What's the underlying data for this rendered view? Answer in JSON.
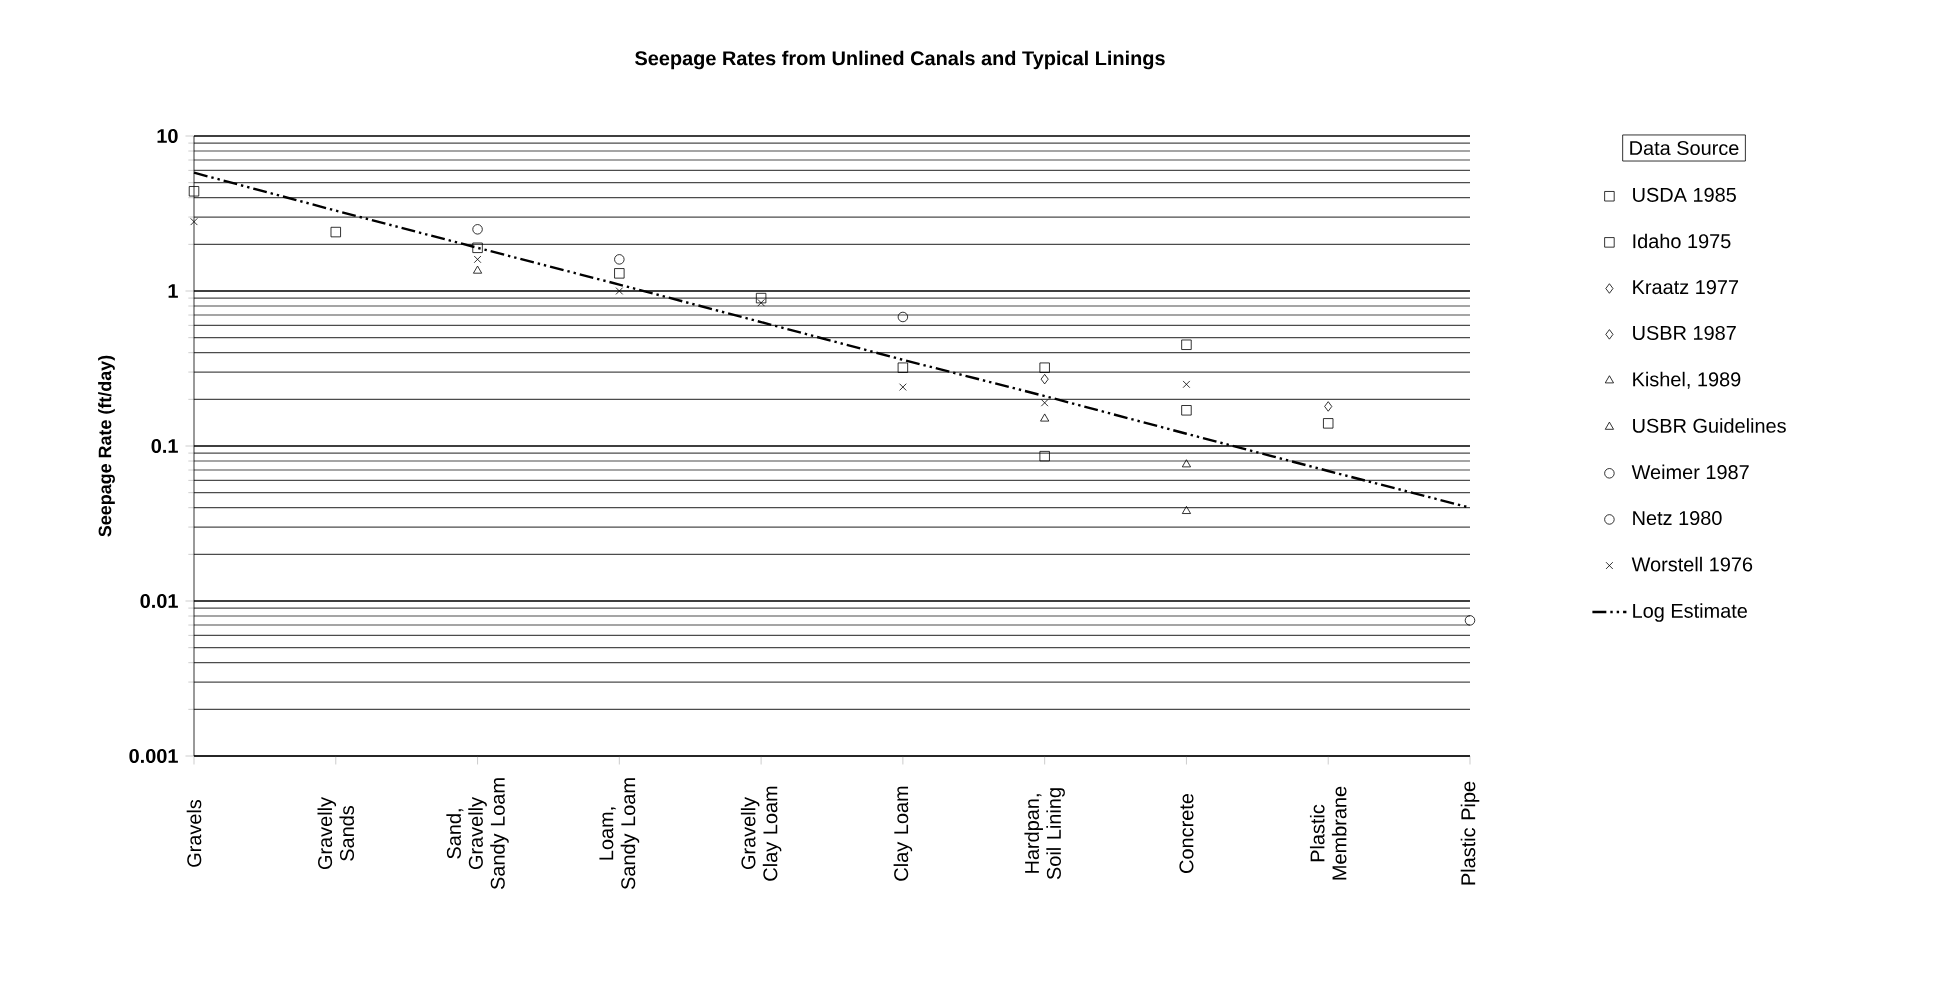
{
  "chart_data": {
    "type": "scatter",
    "title": "Seepage Rates from Unlined Canals and Typical Linings",
    "ylabel": "Seepage Rate (ft/day)",
    "legend_title": "Data Source",
    "categories": [
      "Gravels",
      "Gravelly Sands",
      "Sand, Gravelly Sandy Loam",
      "Loam, Sandy Loam",
      "Gravelly Clay Loam",
      "Clay Loam",
      "Hardpan, Soil Lining",
      "Concrete",
      "Plastic Membrane",
      "Plastic Pipe"
    ],
    "log": "y",
    "ylim": [
      0.001,
      10
    ],
    "yticks": [
      0.001,
      0.01,
      0.1,
      1,
      10
    ],
    "grid": "y",
    "legend": "right",
    "series": [
      {
        "name": "USDA 1985",
        "color": "#000000",
        "marker": "square",
        "values": [
          4.4,
          2.4,
          1.9,
          1.3,
          0.9,
          null,
          0.32,
          0.17,
          null,
          null
        ]
      },
      {
        "name": "Idaho 1975",
        "color": "#000000",
        "marker": "square",
        "values": [
          null,
          null,
          null,
          null,
          null,
          0.32,
          0.086,
          0.45,
          0.14,
          null
        ]
      },
      {
        "name": "Kraatz 1977",
        "color": "#000000",
        "marker": "diamond",
        "values": [
          null,
          null,
          null,
          null,
          null,
          null,
          null,
          null,
          0.18,
          null
        ]
      },
      {
        "name": "USBR 1987",
        "color": "#000000",
        "marker": "diamond",
        "values": [
          null,
          null,
          null,
          null,
          null,
          null,
          0.27,
          null,
          null,
          null
        ]
      },
      {
        "name": "Kishel, 1989",
        "color": "#000000",
        "marker": "triangle",
        "values": [
          null,
          null,
          null,
          null,
          null,
          null,
          null,
          0.038,
          null,
          null
        ]
      },
      {
        "name": "USBR Guidelines",
        "color": "#000000",
        "marker": "triangle",
        "values": [
          null,
          null,
          1.35,
          null,
          null,
          null,
          0.15,
          0.076,
          null,
          null
        ]
      },
      {
        "name": "Weimer 1987",
        "color": "#000000",
        "marker": "circle",
        "values": [
          null,
          null,
          null,
          null,
          null,
          null,
          null,
          null,
          null,
          0.0075
        ]
      },
      {
        "name": "Netz 1980",
        "color": "#000000",
        "marker": "circle",
        "values": [
          null,
          null,
          2.5,
          1.6,
          null,
          0.68,
          null,
          null,
          null,
          null
        ]
      },
      {
        "name": "Worstell 1976",
        "color": "#000000",
        "marker": "cross",
        "values": [
          2.8,
          null,
          1.6,
          1.0,
          0.84,
          0.24,
          0.19,
          0.25,
          null,
          null
        ]
      },
      {
        "name": "Log Estimate",
        "type": "line",
        "color": "#000000",
        "marker": "none",
        "line_style": "dashed",
        "values": [
          5.8,
          3.3,
          1.9,
          1.1,
          0.63,
          0.36,
          0.21,
          0.12,
          0.069,
          0.04
        ]
      }
    ]
  }
}
